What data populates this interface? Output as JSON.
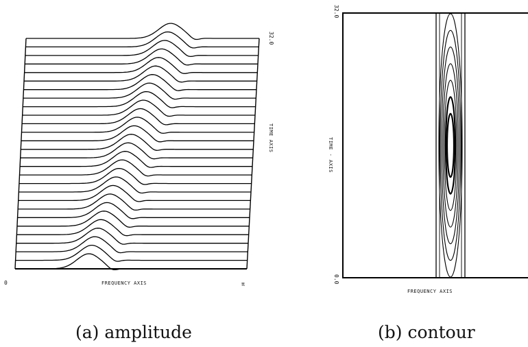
{
  "chart_data": [
    {
      "type": "waterfall",
      "panel": "a",
      "caption": "(a) amplitude",
      "xlabel": "FREQUENCY AXIS",
      "ylabel": "TIME AXIS",
      "x_tick_labels": [
        "0",
        "π"
      ],
      "y_tick_labels": [
        "32.0"
      ],
      "xlim": [
        0,
        3.1416
      ],
      "ylim": [
        0,
        32
      ],
      "traces": 28,
      "peak_frequency_start": 1.0,
      "peak_frequency_end": 1.95,
      "peak_height": 1.0,
      "grid": false
    },
    {
      "type": "contour",
      "panel": "b",
      "caption": "(b) contour",
      "xlabel": "FREQUENCY AXIS",
      "ylabel": "TIME - AXIS",
      "y_tick_labels": [
        "0.0",
        "32.0"
      ],
      "ylim": [
        0,
        32
      ],
      "levels": 7,
      "center_time": 16,
      "grid": false
    }
  ]
}
